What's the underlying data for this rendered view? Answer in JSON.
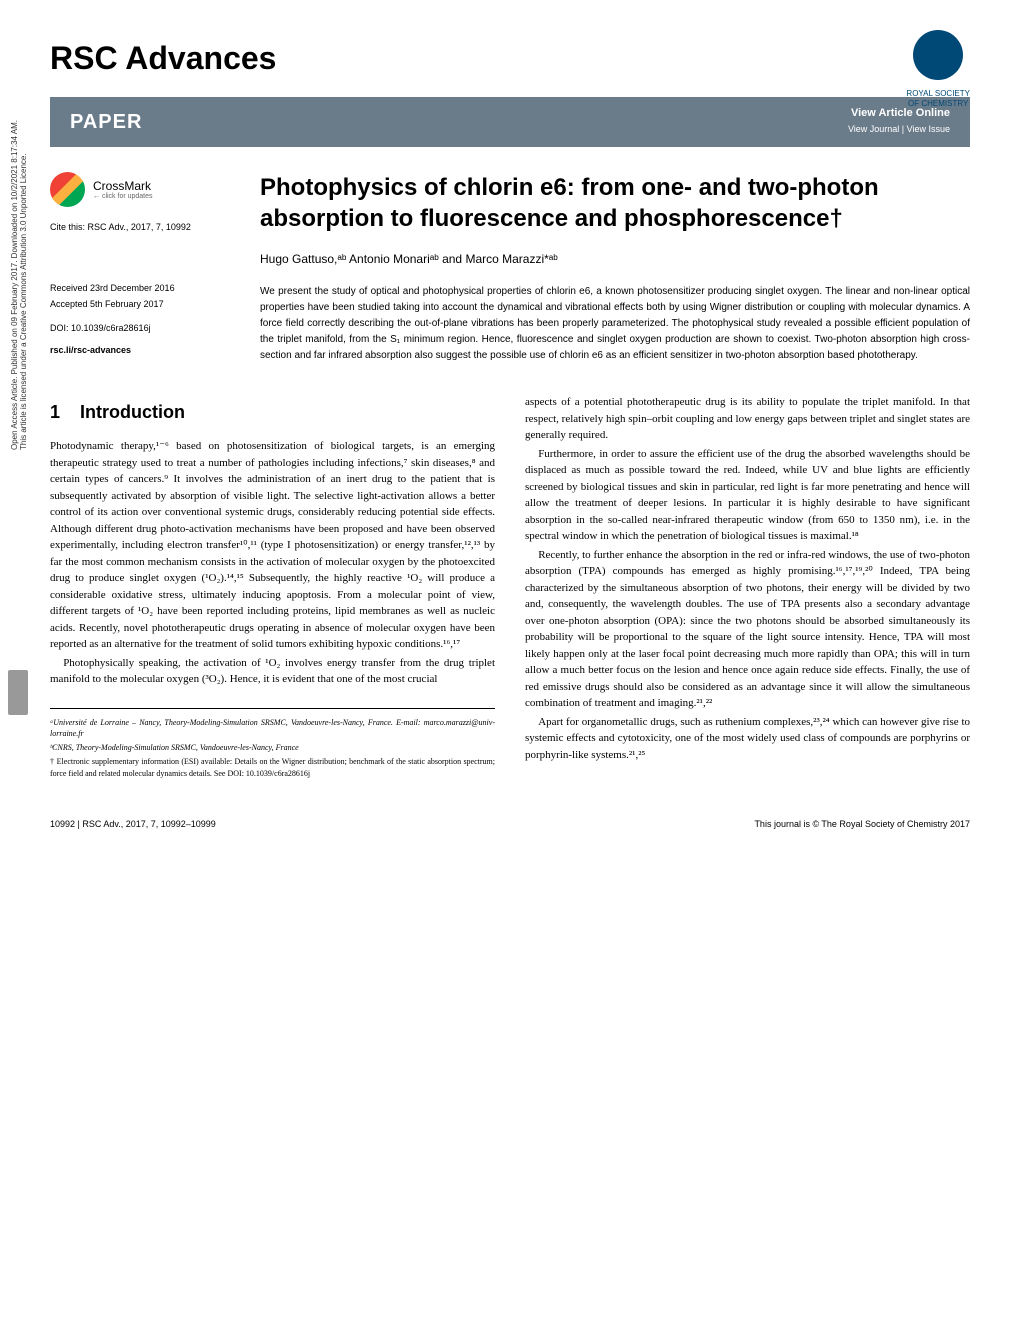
{
  "journal_name": "RSC Advances",
  "publisher_logo": {
    "line1": "ROYAL SOCIETY",
    "line2": "OF CHEMISTRY"
  },
  "paper_bar": {
    "label": "PAPER",
    "view_online": "View Article Online",
    "view_journal": "View Journal | View Issue"
  },
  "crossmark": {
    "label": "CrossMark",
    "sublabel": "← click for updates"
  },
  "citation": "Cite this: RSC Adv., 2017, 7, 10992",
  "received": "Received 23rd December 2016",
  "accepted": "Accepted 5th February 2017",
  "doi": "DOI: 10.1039/c6ra28616j",
  "rsc_link": "rsc.li/rsc-advances",
  "title": "Photophysics of chlorin e6: from one- and two-photon absorption to fluorescence and phosphorescence†",
  "authors": "Hugo Gattuso,ᵃᵇ Antonio Monariᵃᵇ and Marco Marazzi*ᵃᵇ",
  "abstract": "We present the study of optical and photophysical properties of chlorin e6, a known photosensitizer producing singlet oxygen. The linear and non-linear optical properties have been studied taking into account the dynamical and vibrational effects both by using Wigner distribution or coupling with molecular dynamics. A force field correctly describing the out-of-plane vibrations has been properly parameterized. The photophysical study revealed a possible efficient population of the triplet manifold, from the S₁ minimum region. Hence, fluorescence and singlet oxygen production are shown to coexist. Two-photon absorption high cross-section and far infrared absorption also suggest the possible use of chlorin e6 as an efficient sensitizer in two-photon absorption based phototherapy.",
  "section_number": "1",
  "section_title": "Introduction",
  "body": {
    "p1": "Photodynamic therapy,¹⁻⁶ based on photosensitization of biological targets, is an emerging therapeutic strategy used to treat a number of pathologies including infections,⁷ skin diseases,⁸ and certain types of cancers.⁹ It involves the administration of an inert drug to the patient that is subsequently activated by absorption of visible light. The selective light-activation allows a better control of its action over conventional systemic drugs, considerably reducing potential side effects. Although different drug photo-activation mechanisms have been proposed and have been observed experimentally, including electron transfer¹⁰,¹¹ (type I photosensitization) or energy transfer,¹²,¹³ by far the most common mechanism consists in the activation of molecular oxygen by the photoexcited drug to produce singlet oxygen (¹O₂).¹⁴,¹⁵ Subsequently, the highly reactive ¹O₂ will produce a considerable oxidative stress, ultimately inducing apoptosis. From a molecular point of view, different targets of ¹O₂ have been reported including proteins, lipid membranes as well as nucleic acids. Recently, novel phototherapeutic drugs operating in absence of molecular oxygen have been reported as an alternative for the treatment of solid tumors exhibiting hypoxic conditions.¹⁶,¹⁷",
    "p2": "Photophysically speaking, the activation of ¹O₂ involves energy transfer from the drug triplet manifold to the molecular oxygen (³O₂). Hence, it is evident that one of the most crucial",
    "p3": "aspects of a potential phototherapeutic drug is its ability to populate the triplet manifold. In that respect, relatively high spin–orbit coupling and low energy gaps between triplet and singlet states are generally required.",
    "p4": "Furthermore, in order to assure the efficient use of the drug the absorbed wavelengths should be displaced as much as possible toward the red. Indeed, while UV and blue lights are efficiently screened by biological tissues and skin in particular, red light is far more penetrating and hence will allow the treatment of deeper lesions. In particular it is highly desirable to have significant absorption in the so-called near-infrared therapeutic window (from 650 to 1350 nm), i.e. in the spectral window in which the penetration of biological tissues is maximal.¹⁸",
    "p5": "Recently, to further enhance the absorption in the red or infra-red windows, the use of two-photon absorption (TPA) compounds has emerged as highly promising.¹⁶,¹⁷,¹⁹,²⁰ Indeed, TPA being characterized by the simultaneous absorption of two photons, their energy will be divided by two and, consequently, the wavelength doubles. The use of TPA presents also a secondary advantage over one-photon absorption (OPA): since the two photons should be absorbed simultaneously its probability will be proportional to the square of the light source intensity. Hence, TPA will most likely happen only at the laser focal point decreasing much more rapidly than OPA; this will in turn allow a much better focus on the lesion and hence once again reduce side effects. Finally, the use of red emissive drugs should also be considered as an advantage since it will allow the simultaneous combination of treatment and imaging.²¹,²²",
    "p6": "Apart for organometallic drugs, such as ruthenium complexes,²³,²⁴ which can however give rise to systemic effects and cytotoxicity, one of the most widely used class of compounds are porphyrins or porphyrin-like systems.²¹,²⁵"
  },
  "affiliations": {
    "a": "ᵃUniversité de Lorraine – Nancy, Theory-Modeling-Simulation SRSMC, Vandoeuvre-les-Nancy, France. E-mail: marco.marazzi@univ-lorraine.fr",
    "b": "ᵇCNRS, Theory-Modeling-Simulation SRSMC, Vandoeuvre-les-Nancy, France",
    "esi": "† Electronic supplementary information (ESI) available: Details on the Wigner distribution; benchmark of the static absorption spectrum; force field and related molecular dynamics details. See DOI: 10.1039/c6ra28616j"
  },
  "footer": {
    "left": "10992 | RSC Adv., 2017, 7, 10992–10999",
    "right": "This journal is © The Royal Society of Chemistry 2017"
  },
  "sidebar": {
    "line1": "Open Access Article. Published on 09 February 2017. Downloaded on 10/2/2021 8:17:34 AM.",
    "line2": "This article is licensed under a Creative Commons Attribution 3.0 Unported Licence."
  }
}
